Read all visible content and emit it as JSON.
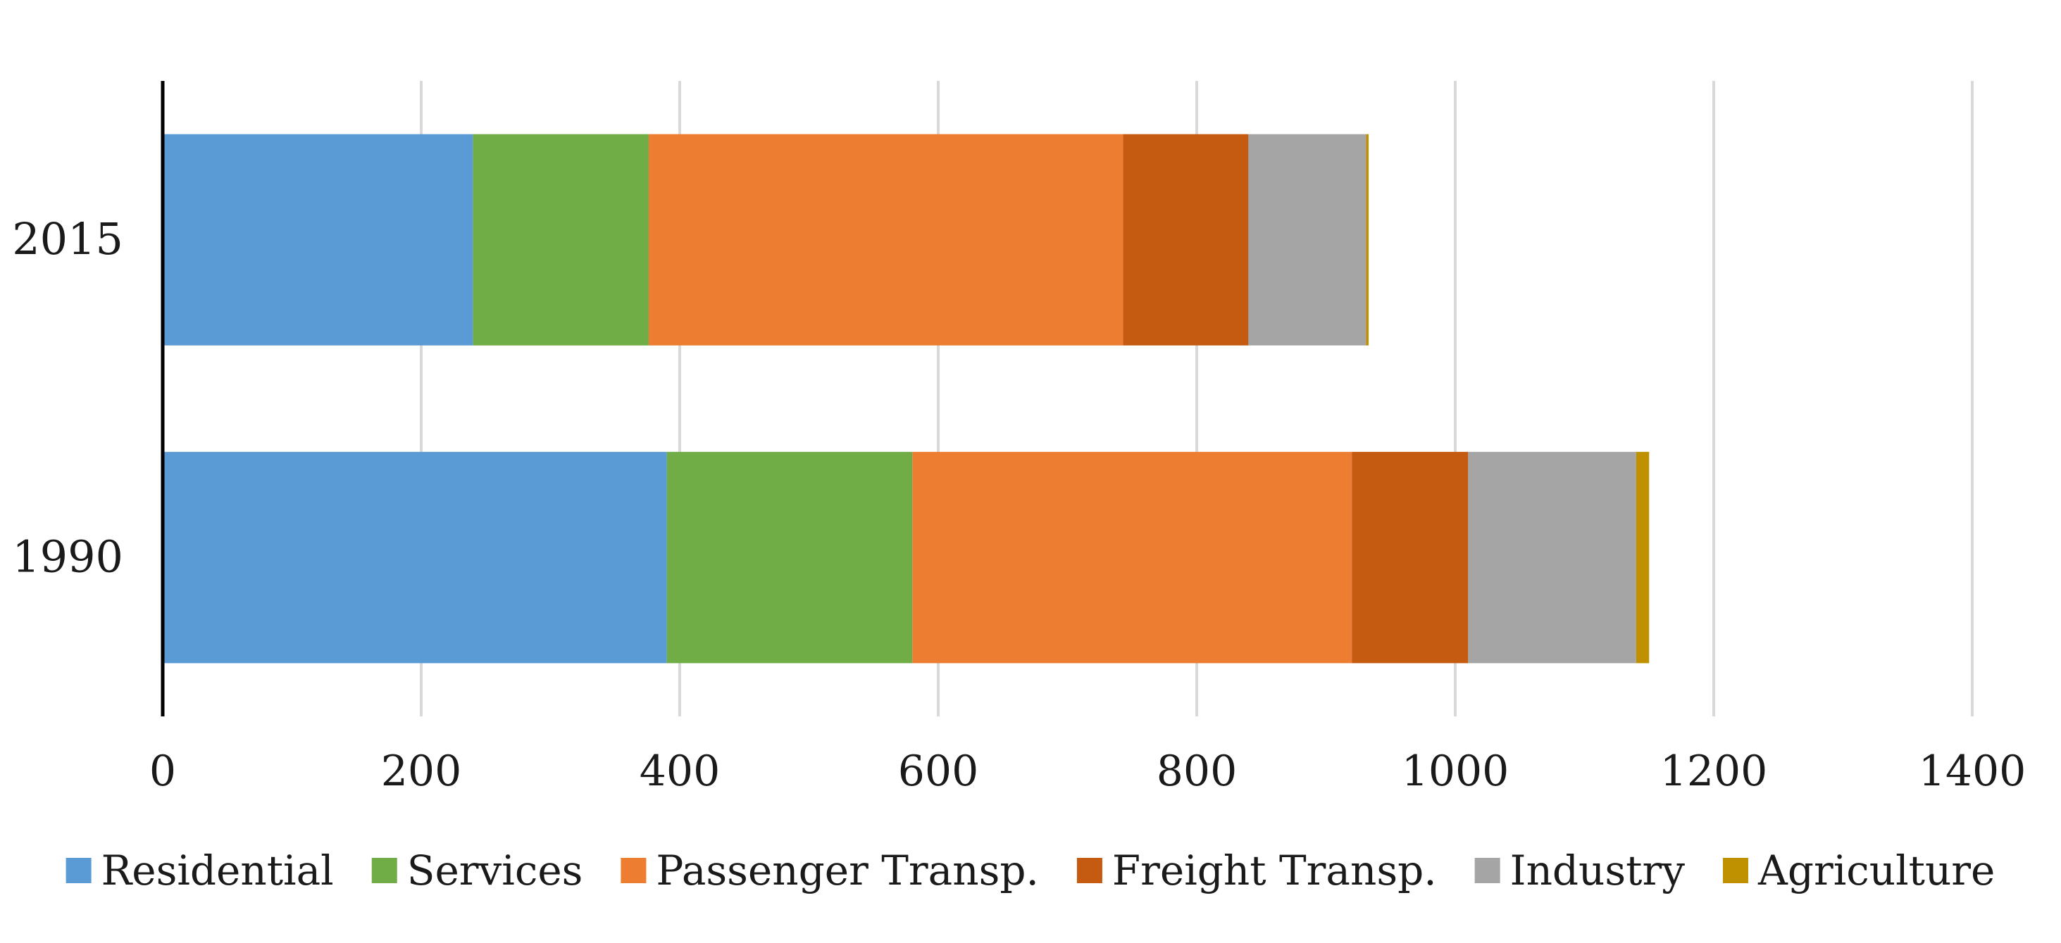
{
  "chart_data": {
    "type": "bar",
    "orientation": "horizontal",
    "stacked": true,
    "categories": [
      "1990",
      "2015"
    ],
    "series": [
      {
        "name": "Residential",
        "color": "#5b9bd5",
        "values": [
          390,
          240
        ]
      },
      {
        "name": "Services",
        "color": "#70ad47",
        "values": [
          190,
          136
        ]
      },
      {
        "name": "Passenger Transp.",
        "color": "#ed7d31",
        "values": [
          340,
          367
        ]
      },
      {
        "name": "Freight Transp.",
        "color": "#c55a11",
        "values": [
          90,
          97
        ]
      },
      {
        "name": "Industry",
        "color": "#a5a5a5",
        "values": [
          130,
          91
        ]
      },
      {
        "name": "Agriculture",
        "color": "#bf9000",
        "values": [
          10,
          2
        ]
      }
    ],
    "xlim": [
      0,
      1400
    ],
    "xticks": [
      0,
      200,
      400,
      600,
      800,
      1000,
      1200,
      1400
    ],
    "xtick_labels": [
      "0",
      "200",
      "400",
      "600",
      "800",
      "1000",
      "1200",
      "1400"
    ],
    "grid": "vertical",
    "legend_position": "bottom",
    "title": "",
    "xlabel": "",
    "ylabel": ""
  }
}
